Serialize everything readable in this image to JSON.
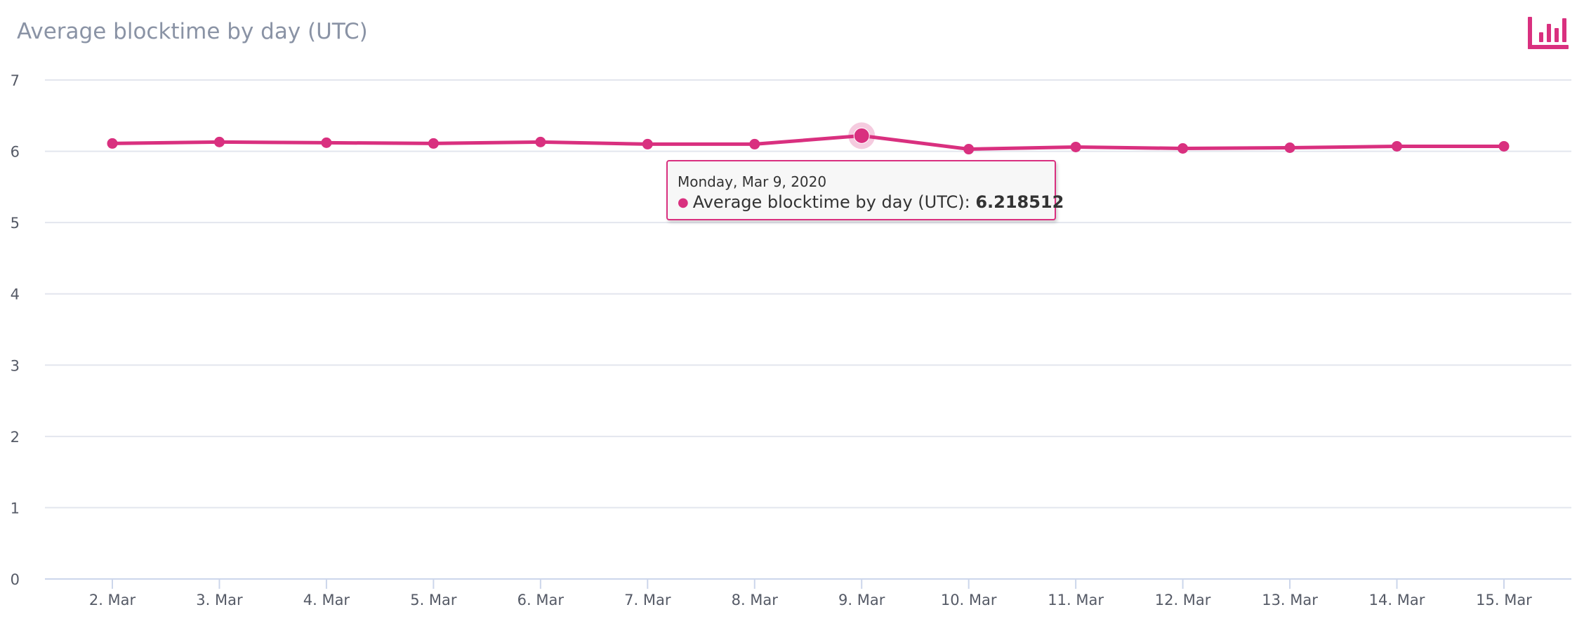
{
  "chart_data": {
    "type": "line",
    "title": "Average blocktime by day (UTC)",
    "xlabel": "",
    "ylabel": "",
    "categories": [
      "2. Mar",
      "3. Mar",
      "4. Mar",
      "5. Mar",
      "6. Mar",
      "7. Mar",
      "8. Mar",
      "9. Mar",
      "10. Mar",
      "11. Mar",
      "12. Mar",
      "13. Mar",
      "14. Mar",
      "15. Mar"
    ],
    "series": [
      {
        "name": "Average blocktime by day (UTC)",
        "values": [
          6.11,
          6.13,
          6.12,
          6.11,
          6.13,
          6.1,
          6.1,
          6.218512,
          6.03,
          6.06,
          6.04,
          6.05,
          6.07,
          6.07
        ],
        "color": "#d9307f"
      }
    ],
    "ylim": [
      0,
      7
    ],
    "yticks": [
      0,
      1,
      2,
      3,
      4,
      5,
      6,
      7
    ],
    "grid": true,
    "legend": "none",
    "tooltip": {
      "date": "Monday, Mar 9, 2020",
      "series_label": "Average blocktime by day (UTC):",
      "value": "6.218512",
      "point_index": 7
    }
  },
  "menu": {
    "icon": "chart-menu-icon",
    "color": "#d9307f"
  }
}
